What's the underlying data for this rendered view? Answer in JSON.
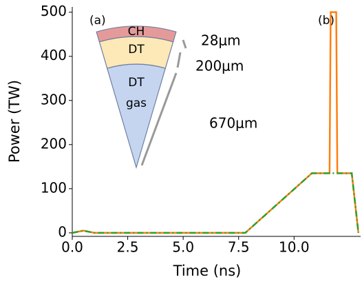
{
  "chart_data": {
    "type": "line",
    "xlabel": "Time (ns)",
    "ylabel": "Power (TW)",
    "xlim": [
      0,
      13
    ],
    "ylim": [
      -8,
      512
    ],
    "xticks": [
      {
        "value": 0,
        "label": "0.0"
      },
      {
        "value": 2.5,
        "label": "2.5"
      },
      {
        "value": 5,
        "label": "5.0"
      },
      {
        "value": 7.5,
        "label": "7.5"
      },
      {
        "value": 10,
        "label": "10.0"
      }
    ],
    "yticks": [
      0,
      100,
      200,
      300,
      400,
      500
    ],
    "series": [
      {
        "color": "#ff7f0e",
        "linestyle": "solid",
        "x": [
          0,
          0.5,
          1.0,
          7.8,
          10.8,
          11.6,
          11.65,
          11.9,
          11.95,
          12.6,
          12.9
        ],
        "values": [
          0,
          5,
          0,
          0,
          135,
          135,
          500,
          500,
          135,
          135,
          0
        ]
      },
      {
        "color": "#2ca02c",
        "linestyle": "dashdot",
        "x": [
          0,
          0.5,
          1.0,
          7.8,
          10.8,
          12.6,
          12.9
        ],
        "values": [
          0,
          5,
          0,
          0,
          135,
          135,
          0
        ]
      }
    ],
    "annotations": [
      "(a)",
      "(b)",
      "CH",
      "DT",
      "DT",
      "gas",
      "28μm",
      "200μm",
      "670μm"
    ]
  }
}
